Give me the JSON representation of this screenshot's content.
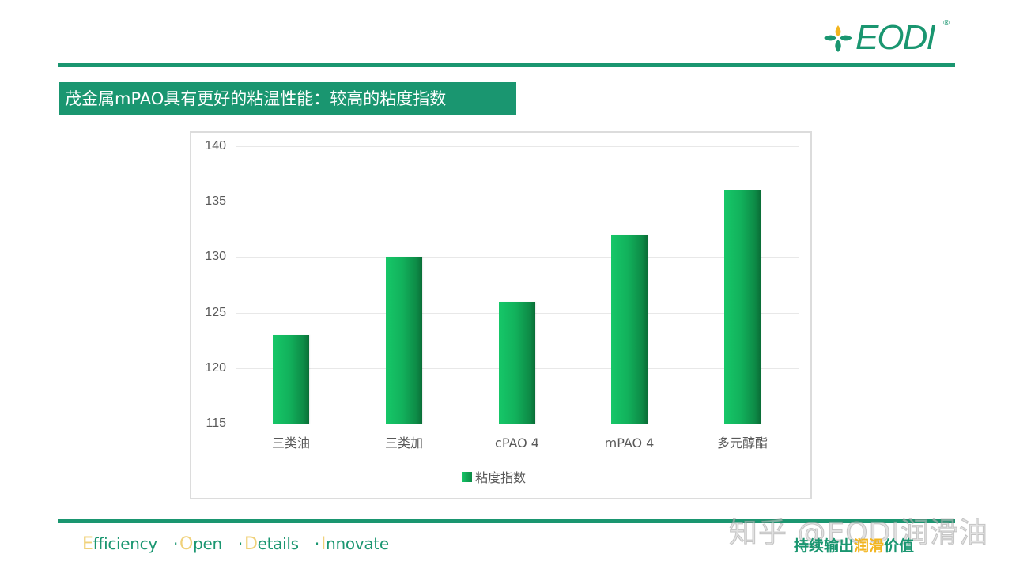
{
  "header": {
    "logo_text": "EODI",
    "logo_registered": "®"
  },
  "slide": {
    "title": "茂金属mPAO具有更好的粘温性能：较高的粘度指数"
  },
  "chart_data": {
    "type": "bar",
    "title": "",
    "categories": [
      "三类油",
      "三类加",
      "cPAO 4",
      "mPAO 4",
      "多元醇酯"
    ],
    "series": [
      {
        "name": "粘度指数",
        "values": [
          123,
          130,
          126,
          132,
          136
        ],
        "color": "#12b25c"
      }
    ],
    "xlabel": "",
    "ylabel": "",
    "ylim": [
      115,
      140
    ],
    "yticks": [
      "140",
      "135",
      "130",
      "125",
      "120",
      "115"
    ],
    "grid": true,
    "legend_position": "bottom"
  },
  "footer": {
    "slogan_en": {
      "words": [
        {
          "cap": "E",
          "rest": "fficiency"
        },
        {
          "cap": "O",
          "rest": "pen"
        },
        {
          "cap": "D",
          "rest": "etails"
        },
        {
          "cap": "I",
          "rest": "nnovate"
        }
      ],
      "separator": "·"
    },
    "slogan_cn": {
      "part1": "持续输出",
      "highlight": "润滑",
      "part2": "价值"
    },
    "watermark": "知乎 @EODI润滑油"
  },
  "colors": {
    "brand_green": "#1a9670",
    "bar_green": "#12b25c",
    "accent_gold": "#f2b51f"
  }
}
